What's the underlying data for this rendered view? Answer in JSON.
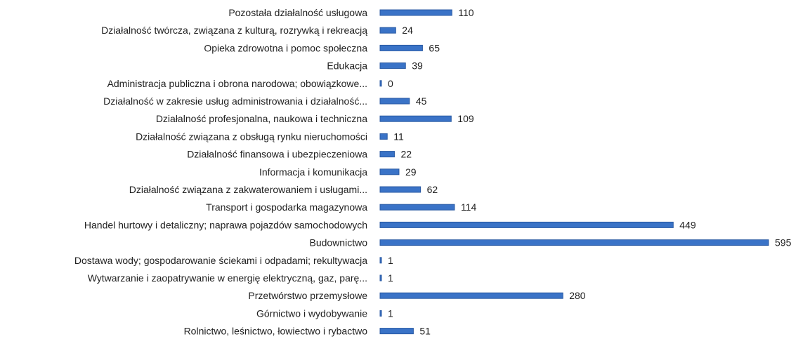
{
  "chart_data": {
    "type": "bar",
    "orientation": "horizontal",
    "title": "",
    "xlabel": "",
    "ylabel": "",
    "grid": false,
    "legend": "none",
    "bar_color": "#3a73c7",
    "xlim": [
      0,
      595
    ],
    "categories": [
      "Pozostała działalność usługowa",
      "Działalność twórcza, związana z kulturą, rozrywką i rekreacją",
      "Opieka zdrowotna i pomoc społeczna",
      "Edukacja",
      "Administracja publiczna i obrona narodowa; obowiązkowe...",
      "Działalność w zakresie usług administrowania i działalność...",
      "Działalność profesjonalna, naukowa i techniczna",
      "Działalność związana z obsługą rynku nieruchomości",
      "Działalność finansowa i ubezpieczeniowa",
      "Informacja i komunikacja",
      "Działalność związana z zakwaterowaniem i usługami...",
      "Transport i gospodarka magazynowa",
      "Handel hurtowy i detaliczny; naprawa pojazdów samochodowych",
      "Budownictwo",
      "Dostawa wody; gospodarowanie ściekami i odpadami; rekultywacja",
      "Wytwarzanie i zaopatrywanie w energię elektryczną, gaz, parę...",
      "Przetwórstwo przemysłowe",
      "Górnictwo i wydobywanie",
      "Rolnictwo, leśnictwo, łowiectwo i rybactwo"
    ],
    "values": [
      110,
      24,
      65,
      39,
      0,
      45,
      109,
      11,
      22,
      29,
      62,
      114,
      449,
      595,
      1,
      1,
      280,
      1,
      51
    ],
    "value_labels": [
      "110",
      "24",
      "65",
      "39",
      "0",
      "45",
      "109",
      "11",
      "22",
      "29",
      "62",
      "114",
      "449",
      "595",
      "1",
      "1",
      "280",
      "1",
      "51"
    ]
  }
}
